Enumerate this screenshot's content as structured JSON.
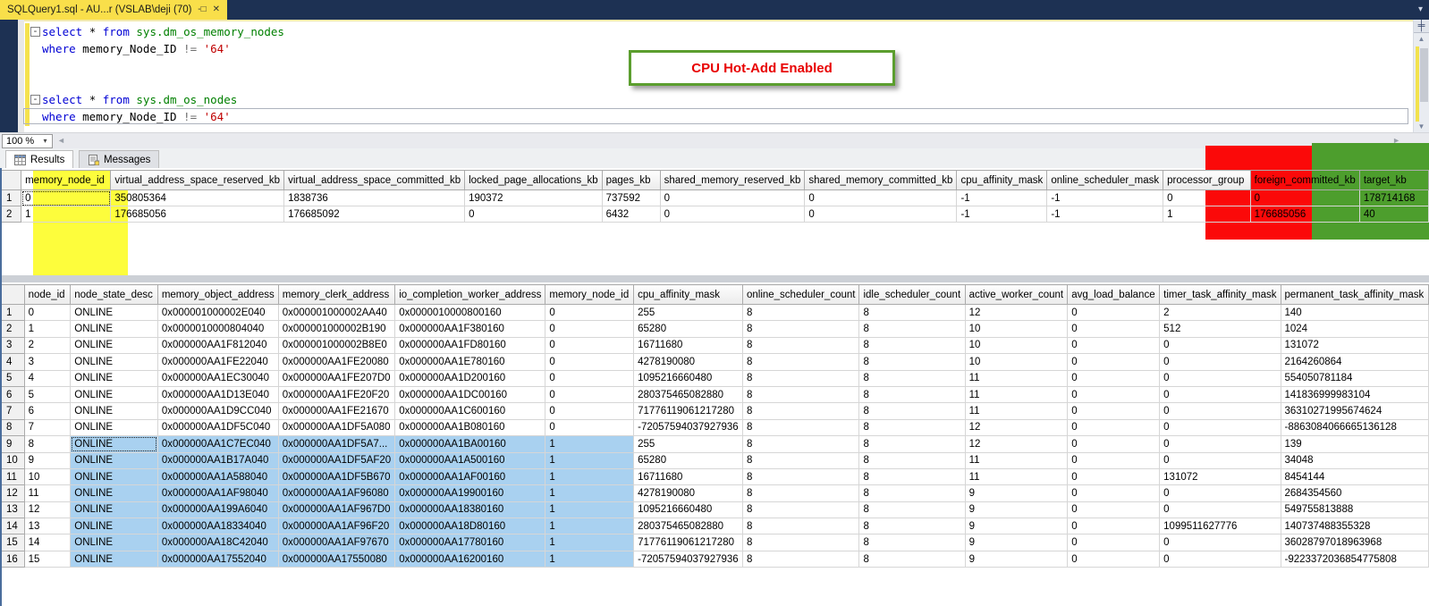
{
  "window": {
    "tab_title": "SQLQuery1.sql - AU...r (VSLAB\\deji (70))*",
    "pin_glyph": "-□",
    "close_glyph": "✕",
    "tab_list_caret": "▾"
  },
  "colors": {
    "chrome-navy": "#1d3153",
    "tab-yellow": "#f9df4a",
    "kw-blue": "#0000d4",
    "tbl-green": "#008000",
    "str-red": "#c00000",
    "ov-yellow": "#fdfd3c",
    "ov-red": "#fb0909",
    "ov-green": "#4d9e2d",
    "sel-blue": "#a9d1f0",
    "annotation-border": "#5b9e2e",
    "annotation-text": "#e80000"
  },
  "editor": {
    "lines": [
      {
        "fold": "-",
        "tokens": [
          {
            "c": "kw",
            "v": "select "
          },
          {
            "c": "pl",
            "v": "* "
          },
          {
            "c": "kw",
            "v": "from "
          },
          {
            "c": "tbl",
            "v": "sys.dm_os_memory_nodes"
          }
        ]
      },
      {
        "tokens": [
          {
            "c": "kw",
            "v": "where "
          },
          {
            "c": "pl",
            "v": "memory_Node_ID "
          },
          {
            "c": "op",
            "v": "!= "
          },
          {
            "c": "str",
            "v": "'64'"
          }
        ]
      },
      {
        "tokens": []
      },
      {
        "tokens": []
      },
      {
        "fold": "-",
        "tokens": [
          {
            "c": "kw",
            "v": "select "
          },
          {
            "c": "pl",
            "v": "* "
          },
          {
            "c": "kw",
            "v": "from "
          },
          {
            "c": "tbl",
            "v": "sys.dm_os_nodes"
          }
        ]
      },
      {
        "current": true,
        "tokens": [
          {
            "c": "kw",
            "v": "where "
          },
          {
            "c": "pl",
            "v": "memory_Node_ID "
          },
          {
            "c": "op",
            "v": "!= "
          },
          {
            "c": "str",
            "v": "'64'"
          }
        ]
      }
    ],
    "splitter_glyph": "╪",
    "scroll_up_glyph": "▲",
    "scroll_down_glyph": "▼"
  },
  "annotation": {
    "label": "CPU Hot-Add Enabled"
  },
  "zoom_control": {
    "value": "100 %",
    "caret": "▾",
    "left_arrow": "◄",
    "right_arrow": "►"
  },
  "results_tabs": {
    "results": "Results",
    "messages": "Messages"
  },
  "grid1": {
    "columns": [
      "memory_node_id",
      "virtual_address_space_reserved_kb",
      "virtual_address_space_committed_kb",
      "locked_page_allocations_kb",
      "pages_kb",
      "shared_memory_reserved_kb",
      "shared_memory_committed_kb",
      "cpu_affinity_mask",
      "online_scheduler_mask",
      "processor_group",
      "foreign_committed_kb",
      "target_kb"
    ],
    "rows": [
      [
        "0",
        "350805364",
        "1838736",
        "190372",
        "737592",
        "0",
        "0",
        "-1",
        "-1",
        "0",
        "0",
        "178714168"
      ],
      [
        "1",
        "176685056",
        "176685092",
        "0",
        "6432",
        "0",
        "0",
        "-1",
        "-1",
        "1",
        "176685056",
        "40"
      ]
    ],
    "column_overlays": {
      "0": "ov-yellow",
      "10": "ov-red",
      "11": "ov-green"
    },
    "focus_cell": {
      "row": 0,
      "col": 0
    }
  },
  "grid2": {
    "columns": [
      "node_id",
      "node_state_desc",
      "memory_object_address",
      "memory_clerk_address",
      "io_completion_worker_address",
      "memory_node_id",
      "cpu_affinity_mask",
      "online_scheduler_count",
      "idle_scheduler_count",
      "active_worker_count",
      "avg_load_balance",
      "timer_task_affinity_mask",
      "permanent_task_affinity_mask"
    ],
    "rows": [
      [
        "0",
        "ONLINE",
        "0x000001000002E040",
        "0x000001000002AA40",
        "0x0000010000800160",
        "0",
        "255",
        "8",
        "8",
        "12",
        "0",
        "2",
        "140"
      ],
      [
        "1",
        "ONLINE",
        "0x0000010000804040",
        "0x000001000002B190",
        "0x000000AA1F380160",
        "0",
        "65280",
        "8",
        "8",
        "10",
        "0",
        "512",
        "1024"
      ],
      [
        "2",
        "ONLINE",
        "0x000000AA1F812040",
        "0x000001000002B8E0",
        "0x000000AA1FD80160",
        "0",
        "16711680",
        "8",
        "8",
        "10",
        "0",
        "0",
        "131072"
      ],
      [
        "3",
        "ONLINE",
        "0x000000AA1FE22040",
        "0x000000AA1FE20080",
        "0x000000AA1E780160",
        "0",
        "4278190080",
        "8",
        "8",
        "10",
        "0",
        "0",
        "2164260864"
      ],
      [
        "4",
        "ONLINE",
        "0x000000AA1EC30040",
        "0x000000AA1FE207D0",
        "0x000000AA1D200160",
        "0",
        "1095216660480",
        "8",
        "8",
        "11",
        "0",
        "0",
        "554050781184"
      ],
      [
        "5",
        "ONLINE",
        "0x000000AA1D13E040",
        "0x000000AA1FE20F20",
        "0x000000AA1DC00160",
        "0",
        "280375465082880",
        "8",
        "8",
        "11",
        "0",
        "0",
        "141836999983104"
      ],
      [
        "6",
        "ONLINE",
        "0x000000AA1D9CC040",
        "0x000000AA1FE21670",
        "0x000000AA1C600160",
        "0",
        "71776119061217280",
        "8",
        "8",
        "11",
        "0",
        "0",
        "36310271995674624"
      ],
      [
        "7",
        "ONLINE",
        "0x000000AA1DF5C040",
        "0x000000AA1DF5A080",
        "0x000000AA1B080160",
        "0",
        "-72057594037927936",
        "8",
        "8",
        "12",
        "0",
        "0",
        "-8863084066665136128"
      ],
      [
        "8",
        "ONLINE",
        "0x000000AA1C7EC040",
        "0x000000AA1DF5A7...",
        "0x000000AA1BA00160",
        "1",
        "255",
        "8",
        "8",
        "12",
        "0",
        "0",
        "139"
      ],
      [
        "9",
        "ONLINE",
        "0x000000AA1B17A040",
        "0x000000AA1DF5AF20",
        "0x000000AA1A500160",
        "1",
        "65280",
        "8",
        "8",
        "11",
        "0",
        "0",
        "34048"
      ],
      [
        "10",
        "ONLINE",
        "0x000000AA1A588040",
        "0x000000AA1DF5B670",
        "0x000000AA1AF00160",
        "1",
        "16711680",
        "8",
        "8",
        "11",
        "0",
        "131072",
        "8454144"
      ],
      [
        "11",
        "ONLINE",
        "0x000000AA1AF98040",
        "0x000000AA1AF96080",
        "0x000000AA19900160",
        "1",
        "4278190080",
        "8",
        "8",
        "9",
        "0",
        "0",
        "2684354560"
      ],
      [
        "12",
        "ONLINE",
        "0x000000AA199A6040",
        "0x000000AA1AF967D0",
        "0x000000AA18380160",
        "1",
        "1095216660480",
        "8",
        "8",
        "9",
        "0",
        "0",
        "549755813888"
      ],
      [
        "13",
        "ONLINE",
        "0x000000AA18334040",
        "0x000000AA1AF96F20",
        "0x000000AA18D80160",
        "1",
        "280375465082880",
        "8",
        "8",
        "9",
        "0",
        "1099511627776",
        "140737488355328"
      ],
      [
        "14",
        "ONLINE",
        "0x000000AA18C42040",
        "0x000000AA1AF97670",
        "0x000000AA17780160",
        "1",
        "71776119061217280",
        "8",
        "8",
        "9",
        "0",
        "0",
        "36028797018963968"
      ],
      [
        "15",
        "ONLINE",
        "0x000000AA17552040",
        "0x000000AA17550080",
        "0x000000AA16200160",
        "1",
        "-72057594037927936",
        "8",
        "8",
        "9",
        "0",
        "0",
        "-9223372036854775808"
      ]
    ],
    "selection": {
      "row_start": 8,
      "row_end": 15,
      "col_start": 1,
      "col_end": 5
    },
    "focus_cell": {
      "row": 8,
      "col": 1
    }
  }
}
